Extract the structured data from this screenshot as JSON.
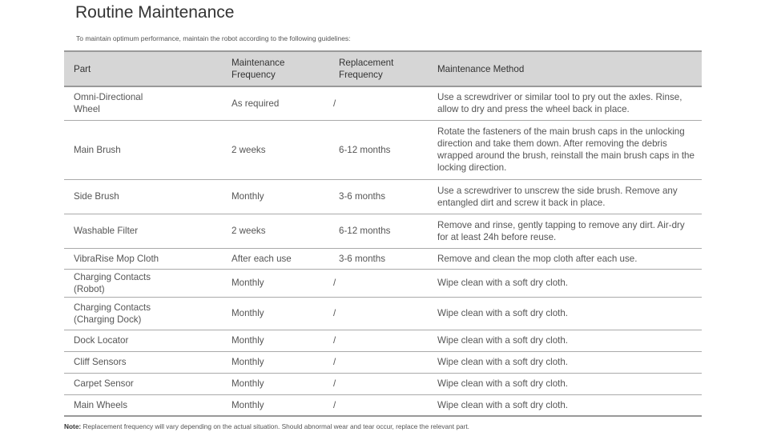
{
  "title": "Routine Maintenance",
  "intro": "To maintain optimum performance, maintain the robot according to the following guidelines:",
  "table": {
    "headers": [
      "Part",
      "Maintenance\nFrequency",
      "Replacement\nFrequency",
      "Maintenance Method"
    ],
    "rows": [
      [
        "Omni-Directional Wheel",
        "As required",
        "/",
        "Use a screwdriver or similar tool to pry out the axles. Rinse, allow to dry and press the wheel back in place."
      ],
      [
        "Main Brush",
        "2 weeks",
        "6-12 months",
        "Rotate the fasteners of the main brush caps in the unlocking direction and take them down. After removing the debris wrapped around the brush, reinstall the main brush caps in the locking direction."
      ],
      [
        "Side Brush",
        "Monthly",
        "3-6 months",
        "Use a screwdriver to unscrew the side brush. Remove any entangled dirt and screw it back in place."
      ],
      [
        "Washable Filter",
        "2 weeks",
        "6-12 months",
        "Remove and rinse, gently tapping to remove any dirt. Air-dry for at least 24h before reuse."
      ],
      [
        "VibraRise Mop Cloth",
        "After each use",
        "3-6 months",
        "Remove and clean the mop cloth after each use."
      ],
      [
        "Charging Contacts (Robot)",
        "Monthly",
        "/",
        "Wipe clean with a soft dry cloth."
      ],
      [
        "Charging Contacts (Charging Dock)",
        "Monthly",
        "/",
        "Wipe clean with a soft dry cloth."
      ],
      [
        "Dock Locator",
        "Monthly",
        "/",
        "Wipe clean with a soft dry cloth."
      ],
      [
        "Cliff Sensors",
        "Monthly",
        "/",
        "Wipe clean with a soft dry cloth."
      ],
      [
        "Carpet Sensor",
        "Monthly",
        "/",
        "Wipe clean with a soft dry cloth."
      ],
      [
        "Main Wheels",
        "Monthly",
        "/",
        "Wipe clean with a soft dry cloth."
      ]
    ]
  },
  "note": {
    "label": "Note:",
    "text": "Replacement frequency will vary depending on the actual situation. Should abnormal wear and tear occur, replace the relevant part."
  }
}
